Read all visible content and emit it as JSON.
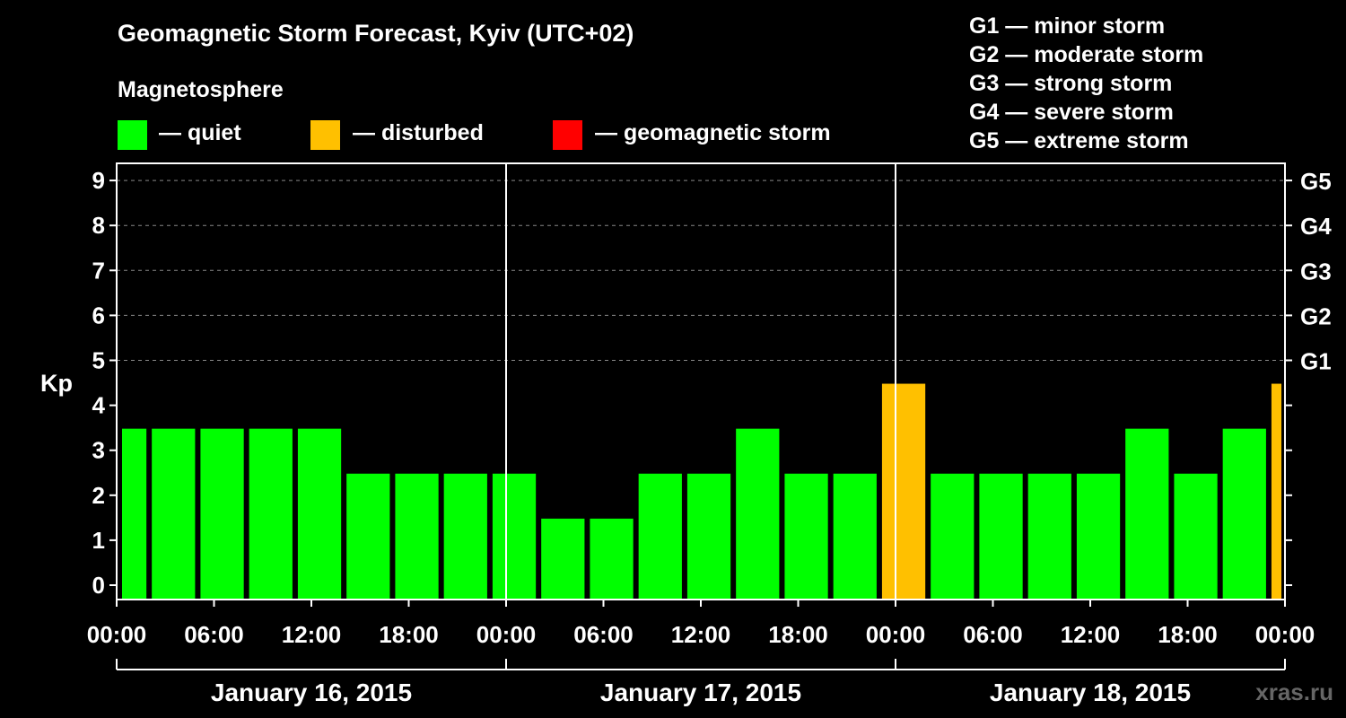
{
  "title": "Geomagnetic Storm Forecast, Kyiv (UTC+02)",
  "legend": {
    "heading": "Magnetosphere",
    "items": [
      {
        "label": "— quiet",
        "color": "#00FF00"
      },
      {
        "label": "— disturbed",
        "color": "#FFC000"
      },
      {
        "label": "— geomagnetic storm",
        "color": "#FF0000"
      }
    ]
  },
  "g_levels": [
    "G1 — minor storm",
    "G2 — moderate storm",
    "G3 — strong storm",
    "G4 — severe storm",
    "G5 — extreme storm"
  ],
  "watermark": "xras.ru",
  "chart_data": {
    "type": "bar",
    "title": "Geomagnetic Storm Forecast, Kyiv (UTC+02)",
    "ylabel": "Kp",
    "ylim": [
      0,
      9
    ],
    "yticks": [
      "0",
      "1",
      "2",
      "3",
      "4",
      "5",
      "6",
      "7",
      "8",
      "9"
    ],
    "right_axis": [
      {
        "kp": 5,
        "label": "G1"
      },
      {
        "kp": 6,
        "label": "G2"
      },
      {
        "kp": 7,
        "label": "G3"
      },
      {
        "kp": 8,
        "label": "G4"
      },
      {
        "kp": 9,
        "label": "G5"
      }
    ],
    "xlim_hours": [
      0,
      72
    ],
    "xticks": [
      {
        "hour": 0,
        "label": "00:00"
      },
      {
        "hour": 6,
        "label": "06:00"
      },
      {
        "hour": 12,
        "label": "12:00"
      },
      {
        "hour": 18,
        "label": "18:00"
      },
      {
        "hour": 24,
        "label": "00:00"
      },
      {
        "hour": 30,
        "label": "06:00"
      },
      {
        "hour": 36,
        "label": "12:00"
      },
      {
        "hour": 42,
        "label": "18:00"
      },
      {
        "hour": 48,
        "label": "00:00"
      },
      {
        "hour": 54,
        "label": "06:00"
      },
      {
        "hour": 60,
        "label": "12:00"
      },
      {
        "hour": 66,
        "label": "18:00"
      },
      {
        "hour": 72,
        "label": "00:00"
      }
    ],
    "days": [
      {
        "label": "January 16, 2015",
        "start": 0,
        "end": 24
      },
      {
        "label": "January 17, 2015",
        "start": 24,
        "end": 48
      },
      {
        "label": "January 18, 2015",
        "start": 48,
        "end": 72
      }
    ],
    "bars": [
      {
        "start": 0,
        "end": 2,
        "kp": 3,
        "status": "quiet"
      },
      {
        "start": 2,
        "end": 5,
        "kp": 3,
        "status": "quiet"
      },
      {
        "start": 5,
        "end": 8,
        "kp": 3,
        "status": "quiet"
      },
      {
        "start": 8,
        "end": 11,
        "kp": 3,
        "status": "quiet"
      },
      {
        "start": 11,
        "end": 14,
        "kp": 3,
        "status": "quiet"
      },
      {
        "start": 14,
        "end": 17,
        "kp": 2,
        "status": "quiet"
      },
      {
        "start": 17,
        "end": 20,
        "kp": 2,
        "status": "quiet"
      },
      {
        "start": 20,
        "end": 23,
        "kp": 2,
        "status": "quiet"
      },
      {
        "start": 23,
        "end": 26,
        "kp": 2,
        "status": "quiet"
      },
      {
        "start": 26,
        "end": 29,
        "kp": 1,
        "status": "quiet"
      },
      {
        "start": 29,
        "end": 32,
        "kp": 1,
        "status": "quiet"
      },
      {
        "start": 32,
        "end": 35,
        "kp": 2,
        "status": "quiet"
      },
      {
        "start": 35,
        "end": 38,
        "kp": 2,
        "status": "quiet"
      },
      {
        "start": 38,
        "end": 41,
        "kp": 3,
        "status": "quiet"
      },
      {
        "start": 41,
        "end": 44,
        "kp": 2,
        "status": "quiet"
      },
      {
        "start": 44,
        "end": 47,
        "kp": 2,
        "status": "quiet"
      },
      {
        "start": 47,
        "end": 50,
        "kp": 4,
        "status": "disturbed"
      },
      {
        "start": 50,
        "end": 53,
        "kp": 2,
        "status": "quiet"
      },
      {
        "start": 53,
        "end": 56,
        "kp": 2,
        "status": "quiet"
      },
      {
        "start": 56,
        "end": 59,
        "kp": 2,
        "status": "quiet"
      },
      {
        "start": 59,
        "end": 62,
        "kp": 2,
        "status": "quiet"
      },
      {
        "start": 62,
        "end": 65,
        "kp": 3,
        "status": "quiet"
      },
      {
        "start": 65,
        "end": 68,
        "kp": 2,
        "status": "quiet"
      },
      {
        "start": 68,
        "end": 71,
        "kp": 3,
        "status": "quiet"
      },
      {
        "start": 71,
        "end": 72,
        "kp": 4,
        "status": "disturbed"
      }
    ],
    "status_colors": {
      "quiet": "#00FF00",
      "disturbed": "#FFC000",
      "storm": "#FF0000"
    }
  }
}
